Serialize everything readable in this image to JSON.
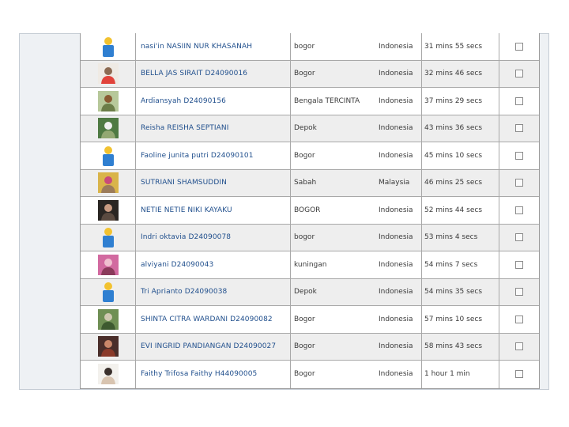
{
  "rows": [
    {
      "name": "nasi'in NASIIN NUR KHASANAH",
      "city": "bogor",
      "country": "Indonesia",
      "time": "31 mins 55 secs",
      "avatar": "default-user-icon",
      "colors": [
        "#f2c230",
        "#2f7fd1"
      ]
    },
    {
      "name": "BELLA JAS SIRAIT D24090016",
      "city": "Bogor",
      "country": "Indonesia",
      "time": "32 mins 46 secs",
      "avatar": "photo",
      "colors": [
        "#efeae4",
        "#8c6a52",
        "#e1433b"
      ]
    },
    {
      "name": "Ardiansyah D24090156",
      "city": "Bengala TERCINTA",
      "country": "Indonesia",
      "time": "37 mins 29 secs",
      "avatar": "photo",
      "colors": [
        "#b7c89a",
        "#8a5a32",
        "#6b7d48"
      ]
    },
    {
      "name": "Reisha REISHA SEPTIANI",
      "city": "Depok",
      "country": "Indonesia",
      "time": "43 mins 36 secs",
      "avatar": "photo",
      "colors": [
        "#4f7a43",
        "#f0f0f0",
        "#93a872"
      ]
    },
    {
      "name": "Faoline junita putri D24090101",
      "city": "Bogor",
      "country": "Indonesia",
      "time": "45 mins 10 secs",
      "avatar": "default-user-icon",
      "colors": [
        "#f2c230",
        "#2f7fd1"
      ]
    },
    {
      "name": "SUTRIANI SHAMSUDDIN",
      "city": "Sabah",
      "country": "Malaysia",
      "time": "46 mins 25 secs",
      "avatar": "photo",
      "colors": [
        "#d9b44a",
        "#c94a7a",
        "#9b7b5a"
      ]
    },
    {
      "name": "NETIE NETIE NIKI KAYAKU",
      "city": "BOGOR",
      "country": "Indonesia",
      "time": "52 mins 44 secs",
      "avatar": "photo",
      "colors": [
        "#2a2623",
        "#c99b82",
        "#5a4a40"
      ]
    },
    {
      "name": "Indri oktavia D24090078",
      "city": "bogor",
      "country": "Indonesia",
      "time": "53 mins 4 secs",
      "avatar": "default-user-icon",
      "colors": [
        "#f2c230",
        "#2f7fd1"
      ]
    },
    {
      "name": "alviyani D24090043",
      "city": "kuningan",
      "country": "Indonesia",
      "time": "54 mins 7 secs",
      "avatar": "photo",
      "colors": [
        "#d26aa0",
        "#f0c0d0",
        "#8a3a5a"
      ]
    },
    {
      "name": "Tri Aprianto D24090038",
      "city": "Depok",
      "country": "Indonesia",
      "time": "54 mins 35 secs",
      "avatar": "default-user-icon",
      "colors": [
        "#f2c230",
        "#2f7fd1"
      ]
    },
    {
      "name": "SHINTA CITRA WARDANI D24090082",
      "city": "Bogor",
      "country": "Indonesia",
      "time": "57 mins 10 secs",
      "avatar": "photo",
      "colors": [
        "#6f8f54",
        "#cfc8b0",
        "#3e5a30"
      ]
    },
    {
      "name": "EVI INGRID PANDIANGAN D24090027",
      "city": "Bogor",
      "country": "Indonesia",
      "time": "58 mins 43 secs",
      "avatar": "photo",
      "colors": [
        "#4a2e2a",
        "#c9876a",
        "#8a3a2a"
      ]
    },
    {
      "name": "Faithy Trifosa Faithy H44090005",
      "city": "Bogor",
      "country": "Indonesia",
      "time": "1 hour 1 min",
      "avatar": "photo",
      "colors": [
        "#f3f1ed",
        "#3a302c",
        "#d8c4b0"
      ]
    }
  ]
}
